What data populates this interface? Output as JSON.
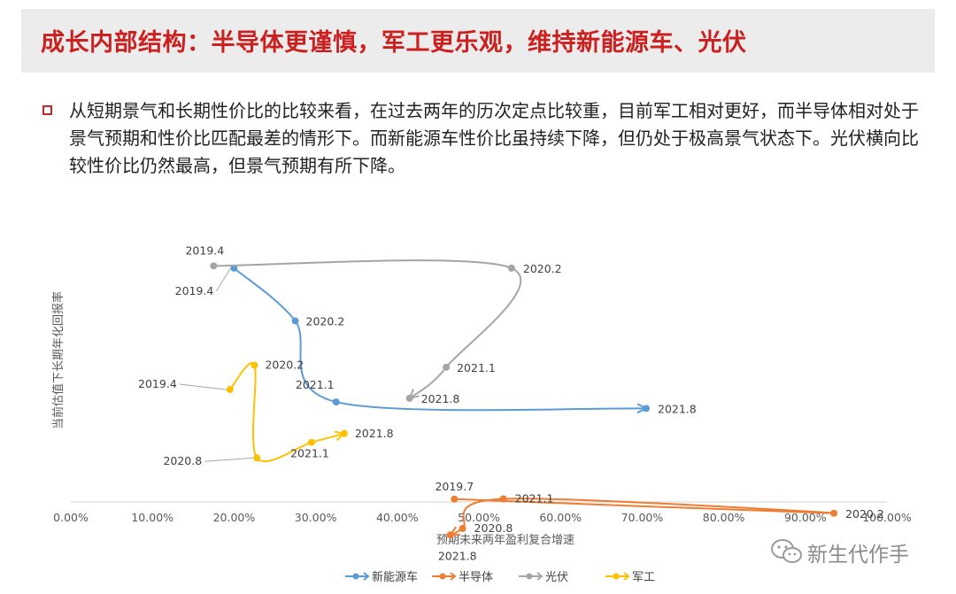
{
  "header": {
    "title": "成长内部结构：半导体更谨慎，军工更乐观，维持新能源车、光伏"
  },
  "summary": {
    "text": "从短期景气和长期性价比的比较来看，在过去两年的历次定点比较重，目前军工相对更好，而半导体相对处于景气预期和性价比匹配最差的情形下。而新能源车性价比虽持续下降，但仍处于极高景气状态下。光伏横向比较性价比仍然最高，但景气预期有所下降。"
  },
  "watermark": {
    "text": "新生代作手"
  },
  "chart_data": {
    "type": "scatter",
    "title": "",
    "xlabel": "预期未来两年盈利复合增速",
    "ylabel": "当前估值下长期年化回报率",
    "xlim": [
      0,
      1.0
    ],
    "x_ticks": [
      "0.00%",
      "10.00%",
      "20.00%",
      "30.00%",
      "40.00%",
      "50.00%",
      "60.00%",
      "70.00%",
      "80.00%",
      "90.00%",
      "100.00%"
    ],
    "y_unit": "relative (no axis ticks shown; 0 = bottom, 100 = top)",
    "series": [
      {
        "name": "新能源车",
        "color": "#5b9bd5",
        "points": [
          {
            "x": 0.2,
            "y": 82.8,
            "label": "2019.4"
          },
          {
            "x": 0.275,
            "y": 64.1,
            "label": "2020.2"
          },
          {
            "x": 0.325,
            "y": 35.4,
            "label": "2021.1"
          },
          {
            "x": 0.705,
            "y": 33.1,
            "label": "2021.8"
          }
        ]
      },
      {
        "name": "半导体",
        "color": "#ed7d31",
        "points": [
          {
            "x": 0.47,
            "y": 1.0,
            "label": "2019.7"
          },
          {
            "x": 0.935,
            "y": -4.0,
            "label": "2020.2"
          },
          {
            "x": 0.53,
            "y": 1.1,
            "label": "2021.1"
          },
          {
            "x": 0.48,
            "y": -9.4,
            "label": "2020.8"
          },
          {
            "x": 0.465,
            "y": -11.7,
            "label": "2021.8"
          }
        ]
      },
      {
        "name": "光伏",
        "color": "#a5a5a5",
        "points": [
          {
            "x": 0.175,
            "y": 83.6,
            "label": "2019.4"
          },
          {
            "x": 0.54,
            "y": 82.8,
            "label": "2020.2"
          },
          {
            "x": 0.46,
            "y": 47.7,
            "label": "2021.1"
          },
          {
            "x": 0.415,
            "y": 36.7,
            "label": "2021.8"
          }
        ]
      },
      {
        "name": "军工",
        "color": "#ffc000",
        "points": [
          {
            "x": 0.195,
            "y": 39.8,
            "label": "2019.4"
          },
          {
            "x": 0.225,
            "y": 48.4,
            "label": "2020.2"
          },
          {
            "x": 0.228,
            "y": 15.6,
            "label": "2020.8"
          },
          {
            "x": 0.295,
            "y": 21.1,
            "label": "2021.1"
          },
          {
            "x": 0.335,
            "y": 24.2,
            "label": "2021.8"
          }
        ]
      }
    ],
    "legend": {
      "position": "bottom",
      "entries": [
        "新能源车",
        "半导体",
        "光伏",
        "军工"
      ]
    }
  }
}
